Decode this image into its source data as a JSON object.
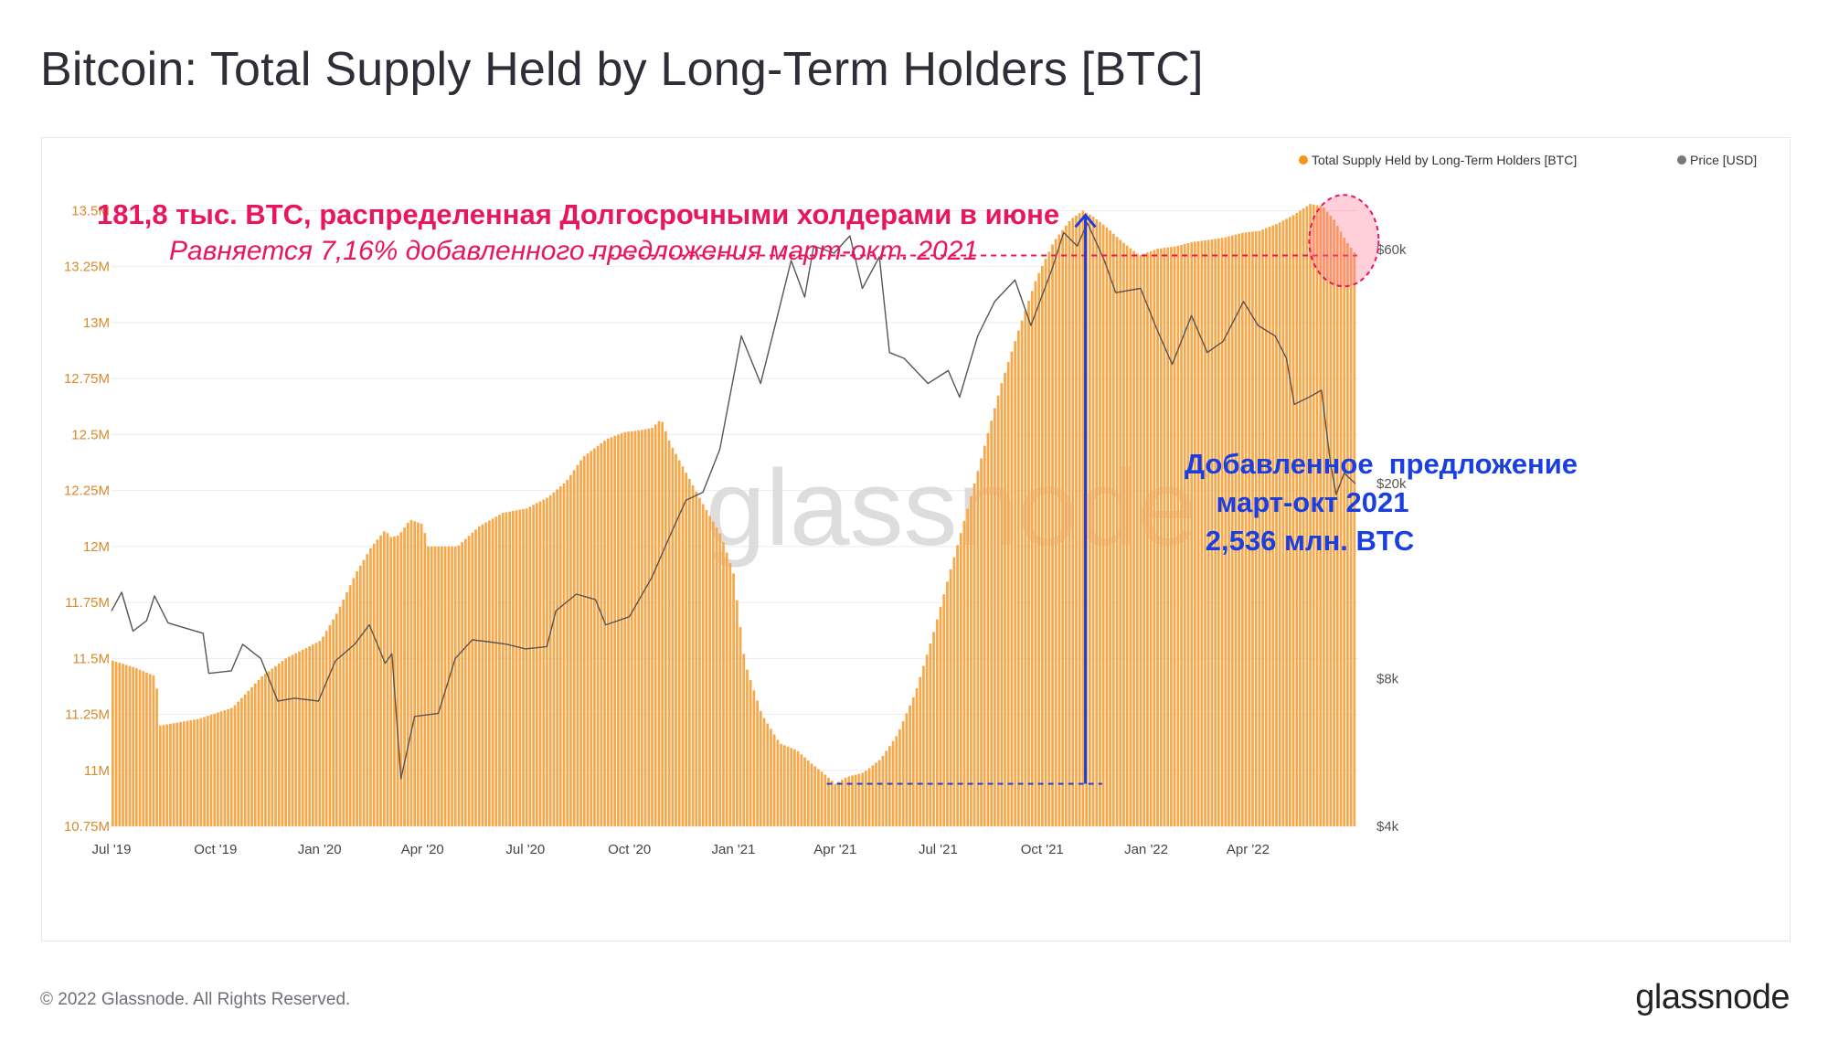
{
  "header": {
    "title": "Bitcoin: Total Supply Held by Long-Term Holders [BTC]"
  },
  "footer": {
    "copyright": "© 2022 Glassnode. All Rights Reserved.",
    "logo": "glassnode"
  },
  "colors": {
    "supply": "#f7931a",
    "price": "#555555",
    "annotation_red": "#e8175d",
    "annotation_blue": "#1a3fe0",
    "watermark": "#d8d8d8"
  },
  "chart_data": {
    "type": "bar",
    "title": "Bitcoin: Total Supply Held by Long-Term Holders [BTC]",
    "watermark": "glassnode",
    "legend": {
      "placement": "top-right",
      "entries": [
        {
          "name": "Total Supply Held by Long-Term Holders [BTC]",
          "color": "#f7931a"
        },
        {
          "name": "Price [USD]",
          "color": "#666666"
        }
      ]
    },
    "x_axis": {
      "ticks": [
        "Jul '19",
        "Oct '19",
        "Jan '20",
        "Apr '20",
        "Jul '20",
        "Oct '20",
        "Jan '21",
        "Apr '21",
        "Jul '21",
        "Oct '21",
        "Jan '22",
        "Apr '22"
      ],
      "range": [
        "2019-07-01",
        "2022-07-05"
      ]
    },
    "y_axis_left": {
      "scale": "linear",
      "ylim": [
        10.75,
        13.6
      ],
      "unit": "M",
      "ticks": [
        "10.75M",
        "11M",
        "11.25M",
        "11.5M",
        "11.75M",
        "12M",
        "12.25M",
        "12.5M",
        "12.75M",
        "13M",
        "13.25M",
        "13.5M"
      ]
    },
    "y_axis_right": {
      "scale": "log",
      "ylim": [
        4000,
        80000
      ],
      "ticks": [
        "$4k",
        "$8k",
        "$20k",
        "$60k"
      ]
    },
    "grid": true,
    "series": [
      {
        "name": "Total Supply Held by Long-Term Holders [BTC]",
        "axis": "left",
        "style": "bars",
        "unit": "M BTC",
        "points": [
          [
            "2019-07-01",
            11.49
          ],
          [
            "2019-07-20",
            11.46
          ],
          [
            "2019-08-08",
            11.42
          ],
          [
            "2019-08-12",
            11.2
          ],
          [
            "2019-09-15",
            11.23
          ],
          [
            "2019-10-15",
            11.28
          ],
          [
            "2019-11-10",
            11.42
          ],
          [
            "2019-12-01",
            11.5
          ],
          [
            "2020-01-01",
            11.58
          ],
          [
            "2020-01-15",
            11.7
          ],
          [
            "2020-02-01",
            11.88
          ],
          [
            "2020-02-15",
            12.0
          ],
          [
            "2020-02-28",
            12.08
          ],
          [
            "2020-03-01",
            12.04
          ],
          [
            "2020-03-10",
            12.05
          ],
          [
            "2020-03-20",
            12.12
          ],
          [
            "2020-03-31",
            12.1
          ],
          [
            "2020-04-05",
            12.0
          ],
          [
            "2020-05-01",
            12.0
          ],
          [
            "2020-05-20",
            12.09
          ],
          [
            "2020-06-10",
            12.15
          ],
          [
            "2020-07-01",
            12.17
          ],
          [
            "2020-07-20",
            12.22
          ],
          [
            "2020-08-05",
            12.29
          ],
          [
            "2020-08-20",
            12.4
          ],
          [
            "2020-09-10",
            12.48
          ],
          [
            "2020-09-25",
            12.51
          ],
          [
            "2020-10-10",
            12.52
          ],
          [
            "2020-10-20",
            12.53
          ],
          [
            "2020-10-28",
            12.57
          ],
          [
            "2020-11-05",
            12.46
          ],
          [
            "2020-11-20",
            12.32
          ],
          [
            "2020-12-05",
            12.18
          ],
          [
            "2020-12-20",
            12.05
          ],
          [
            "2020-12-31",
            11.88
          ],
          [
            "2021-01-10",
            11.48
          ],
          [
            "2021-01-25",
            11.25
          ],
          [
            "2021-02-10",
            11.12
          ],
          [
            "2021-02-25",
            11.09
          ],
          [
            "2021-03-10",
            11.03
          ],
          [
            "2021-03-20",
            10.99
          ],
          [
            "2021-03-31",
            10.94
          ],
          [
            "2021-04-10",
            10.97
          ],
          [
            "2021-04-25",
            10.99
          ],
          [
            "2021-05-10",
            11.05
          ],
          [
            "2021-05-25",
            11.16
          ],
          [
            "2021-06-10",
            11.35
          ],
          [
            "2021-06-25",
            11.6
          ],
          [
            "2021-07-10",
            11.88
          ],
          [
            "2021-07-25",
            12.15
          ],
          [
            "2021-08-10",
            12.45
          ],
          [
            "2021-08-25",
            12.73
          ],
          [
            "2021-09-10",
            12.98
          ],
          [
            "2021-09-25",
            13.2
          ],
          [
            "2021-10-10",
            13.36
          ],
          [
            "2021-10-25",
            13.46
          ],
          [
            "2021-11-05",
            13.5
          ],
          [
            "2021-11-15",
            13.47
          ],
          [
            "2021-11-25",
            13.43
          ],
          [
            "2021-12-10",
            13.36
          ],
          [
            "2021-12-25",
            13.3
          ],
          [
            "2022-01-10",
            13.33
          ],
          [
            "2022-01-25",
            13.34
          ],
          [
            "2022-02-10",
            13.36
          ],
          [
            "2022-02-25",
            13.37
          ],
          [
            "2022-03-10",
            13.38
          ],
          [
            "2022-03-25",
            13.4
          ],
          [
            "2022-04-10",
            13.41
          ],
          [
            "2022-04-25",
            13.44
          ],
          [
            "2022-05-10",
            13.48
          ],
          [
            "2022-05-25",
            13.53
          ],
          [
            "2022-06-05",
            13.52
          ],
          [
            "2022-06-15",
            13.46
          ],
          [
            "2022-06-25",
            13.37
          ],
          [
            "2022-07-05",
            13.3
          ]
        ]
      },
      {
        "name": "Price [USD]",
        "axis": "right",
        "style": "line",
        "points": [
          [
            "2019-07-01",
            11000
          ],
          [
            "2019-07-10",
            12000
          ],
          [
            "2019-07-20",
            10000
          ],
          [
            "2019-08-01",
            10500
          ],
          [
            "2019-08-08",
            11800
          ],
          [
            "2019-08-20",
            10400
          ],
          [
            "2019-09-01",
            10200
          ],
          [
            "2019-09-20",
            9900
          ],
          [
            "2019-09-25",
            8200
          ],
          [
            "2019-10-15",
            8300
          ],
          [
            "2019-10-25",
            9400
          ],
          [
            "2019-11-10",
            8800
          ],
          [
            "2019-11-25",
            7200
          ],
          [
            "2019-12-10",
            7300
          ],
          [
            "2019-12-31",
            7200
          ],
          [
            "2020-01-15",
            8700
          ],
          [
            "2020-02-01",
            9400
          ],
          [
            "2020-02-14",
            10300
          ],
          [
            "2020-02-28",
            8600
          ],
          [
            "2020-03-05",
            9000
          ],
          [
            "2020-03-13",
            5000
          ],
          [
            "2020-03-25",
            6700
          ],
          [
            "2020-04-15",
            6800
          ],
          [
            "2020-04-30",
            8800
          ],
          [
            "2020-05-15",
            9600
          ],
          [
            "2020-06-01",
            9500
          ],
          [
            "2020-06-15",
            9400
          ],
          [
            "2020-07-01",
            9200
          ],
          [
            "2020-07-20",
            9300
          ],
          [
            "2020-07-28",
            11000
          ],
          [
            "2020-08-15",
            11900
          ],
          [
            "2020-09-01",
            11600
          ],
          [
            "2020-09-10",
            10300
          ],
          [
            "2020-10-01",
            10700
          ],
          [
            "2020-10-21",
            12900
          ],
          [
            "2020-11-05",
            15500
          ],
          [
            "2020-11-20",
            18500
          ],
          [
            "2020-12-05",
            19200
          ],
          [
            "2020-12-20",
            23500
          ],
          [
            "2021-01-08",
            40000
          ],
          [
            "2021-01-25",
            32000
          ],
          [
            "2021-02-10",
            45000
          ],
          [
            "2021-02-21",
            57000
          ],
          [
            "2021-03-05",
            48000
          ],
          [
            "2021-03-13",
            61000
          ],
          [
            "2021-03-31",
            59000
          ],
          [
            "2021-04-14",
            64000
          ],
          [
            "2021-04-25",
            50000
          ],
          [
            "2021-05-10",
            58000
          ],
          [
            "2021-05-19",
            37000
          ],
          [
            "2021-06-01",
            36000
          ],
          [
            "2021-06-22",
            32000
          ],
          [
            "2021-07-10",
            34000
          ],
          [
            "2021-07-20",
            30000
          ],
          [
            "2021-08-05",
            40000
          ],
          [
            "2021-08-20",
            47000
          ],
          [
            "2021-09-07",
            52000
          ],
          [
            "2021-09-21",
            42000
          ],
          [
            "2021-10-10",
            55000
          ],
          [
            "2021-10-20",
            65000
          ],
          [
            "2021-11-01",
            61000
          ],
          [
            "2021-11-10",
            68000
          ],
          [
            "2021-11-25",
            57000
          ],
          [
            "2021-12-05",
            49000
          ],
          [
            "2021-12-27",
            50000
          ],
          [
            "2022-01-10",
            41500
          ],
          [
            "2022-01-24",
            35000
          ],
          [
            "2022-02-10",
            44000
          ],
          [
            "2022-02-24",
            37000
          ],
          [
            "2022-03-10",
            39000
          ],
          [
            "2022-03-28",
            47000
          ],
          [
            "2022-04-10",
            42000
          ],
          [
            "2022-04-25",
            40000
          ],
          [
            "2022-05-05",
            36000
          ],
          [
            "2022-05-12",
            29000
          ],
          [
            "2022-05-25",
            30000
          ],
          [
            "2022-06-05",
            31000
          ],
          [
            "2022-06-13",
            22000
          ],
          [
            "2022-06-18",
            19000
          ],
          [
            "2022-06-25",
            21000
          ],
          [
            "2022-07-05",
            20000
          ]
        ]
      }
    ],
    "annotations": [
      {
        "id": "red-title",
        "text": "181,8 тыс. BTC, распределенная Долгосрочными холдерами в июне",
        "color": "#e8175d",
        "style": "bold"
      },
      {
        "id": "red-subtitle",
        "text": "Равняется 7,16% добавленного предложения март-окт. 2021",
        "color": "#e8175d",
        "style": "italic"
      },
      {
        "id": "red-dashed-line",
        "y": 13.3,
        "x_range": [
          "2020-12-01",
          "2022-07-05"
        ],
        "color": "#e8175d"
      },
      {
        "id": "red-circle",
        "x": "2022-06-20",
        "y": 13.35,
        "color": "#e8175d"
      },
      {
        "id": "blue-dashed-line",
        "y": 10.94,
        "x_range": [
          "2021-03-31",
          "2021-11-15"
        ],
        "color": "#1a3fe0"
      },
      {
        "id": "blue-arrow",
        "x": "2021-11-05",
        "y_from": 10.94,
        "y_to": 13.48,
        "color": "#1a3fe0"
      },
      {
        "id": "blue-text",
        "lines": [
          "Добавленное  предложение",
          "март-окт 2021",
          "2,536 млн. BTC"
        ],
        "color": "#1a3fe0",
        "style": "bold"
      }
    ]
  }
}
